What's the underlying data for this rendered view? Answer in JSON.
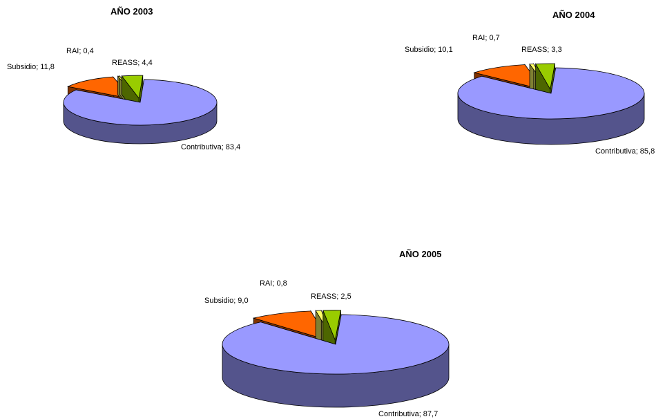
{
  "colors": {
    "Contributiva": "#9999ff",
    "Subsidio": "#ff6600",
    "RAI": "#ffff66",
    "REASS": "#99cc00"
  },
  "chart_data": [
    {
      "type": "pie",
      "title": "AÑO 2003",
      "slices": [
        {
          "name": "Contributiva",
          "value": 83.4,
          "label": "Contributiva; 83,4",
          "exploded": false
        },
        {
          "name": "Subsidio",
          "value": 11.8,
          "label": "Subsidio; 11,8",
          "exploded": true
        },
        {
          "name": "RAI",
          "value": 0.4,
          "label": "RAI; 0,4",
          "exploded": true
        },
        {
          "name": "REASS",
          "value": 4.4,
          "label": "REASS; 4,4",
          "exploded": true
        }
      ]
    },
    {
      "type": "pie",
      "title": "AÑO 2004",
      "slices": [
        {
          "name": "Contributiva",
          "value": 85.8,
          "label": "Contributiva; 85,8",
          "exploded": false
        },
        {
          "name": "Subsidio",
          "value": 10.1,
          "label": "Subsidio; 10,1",
          "exploded": true
        },
        {
          "name": "RAI",
          "value": 0.7,
          "label": "RAI; 0,7",
          "exploded": true
        },
        {
          "name": "REASS",
          "value": 3.3,
          "label": "REASS; 3,3",
          "exploded": true
        }
      ]
    },
    {
      "type": "pie",
      "title": "AÑO 2005",
      "slices": [
        {
          "name": "Contributiva",
          "value": 87.7,
          "label": "Contributiva; 87,7",
          "exploded": false
        },
        {
          "name": "Subsidio",
          "value": 9.0,
          "label": "Subsidio; 9,0",
          "exploded": true
        },
        {
          "name": "RAI",
          "value": 0.8,
          "label": "RAI; 0,8",
          "exploded": true
        },
        {
          "name": "REASS",
          "value": 2.5,
          "label": "REASS; 2,5",
          "exploded": true
        }
      ]
    }
  ]
}
